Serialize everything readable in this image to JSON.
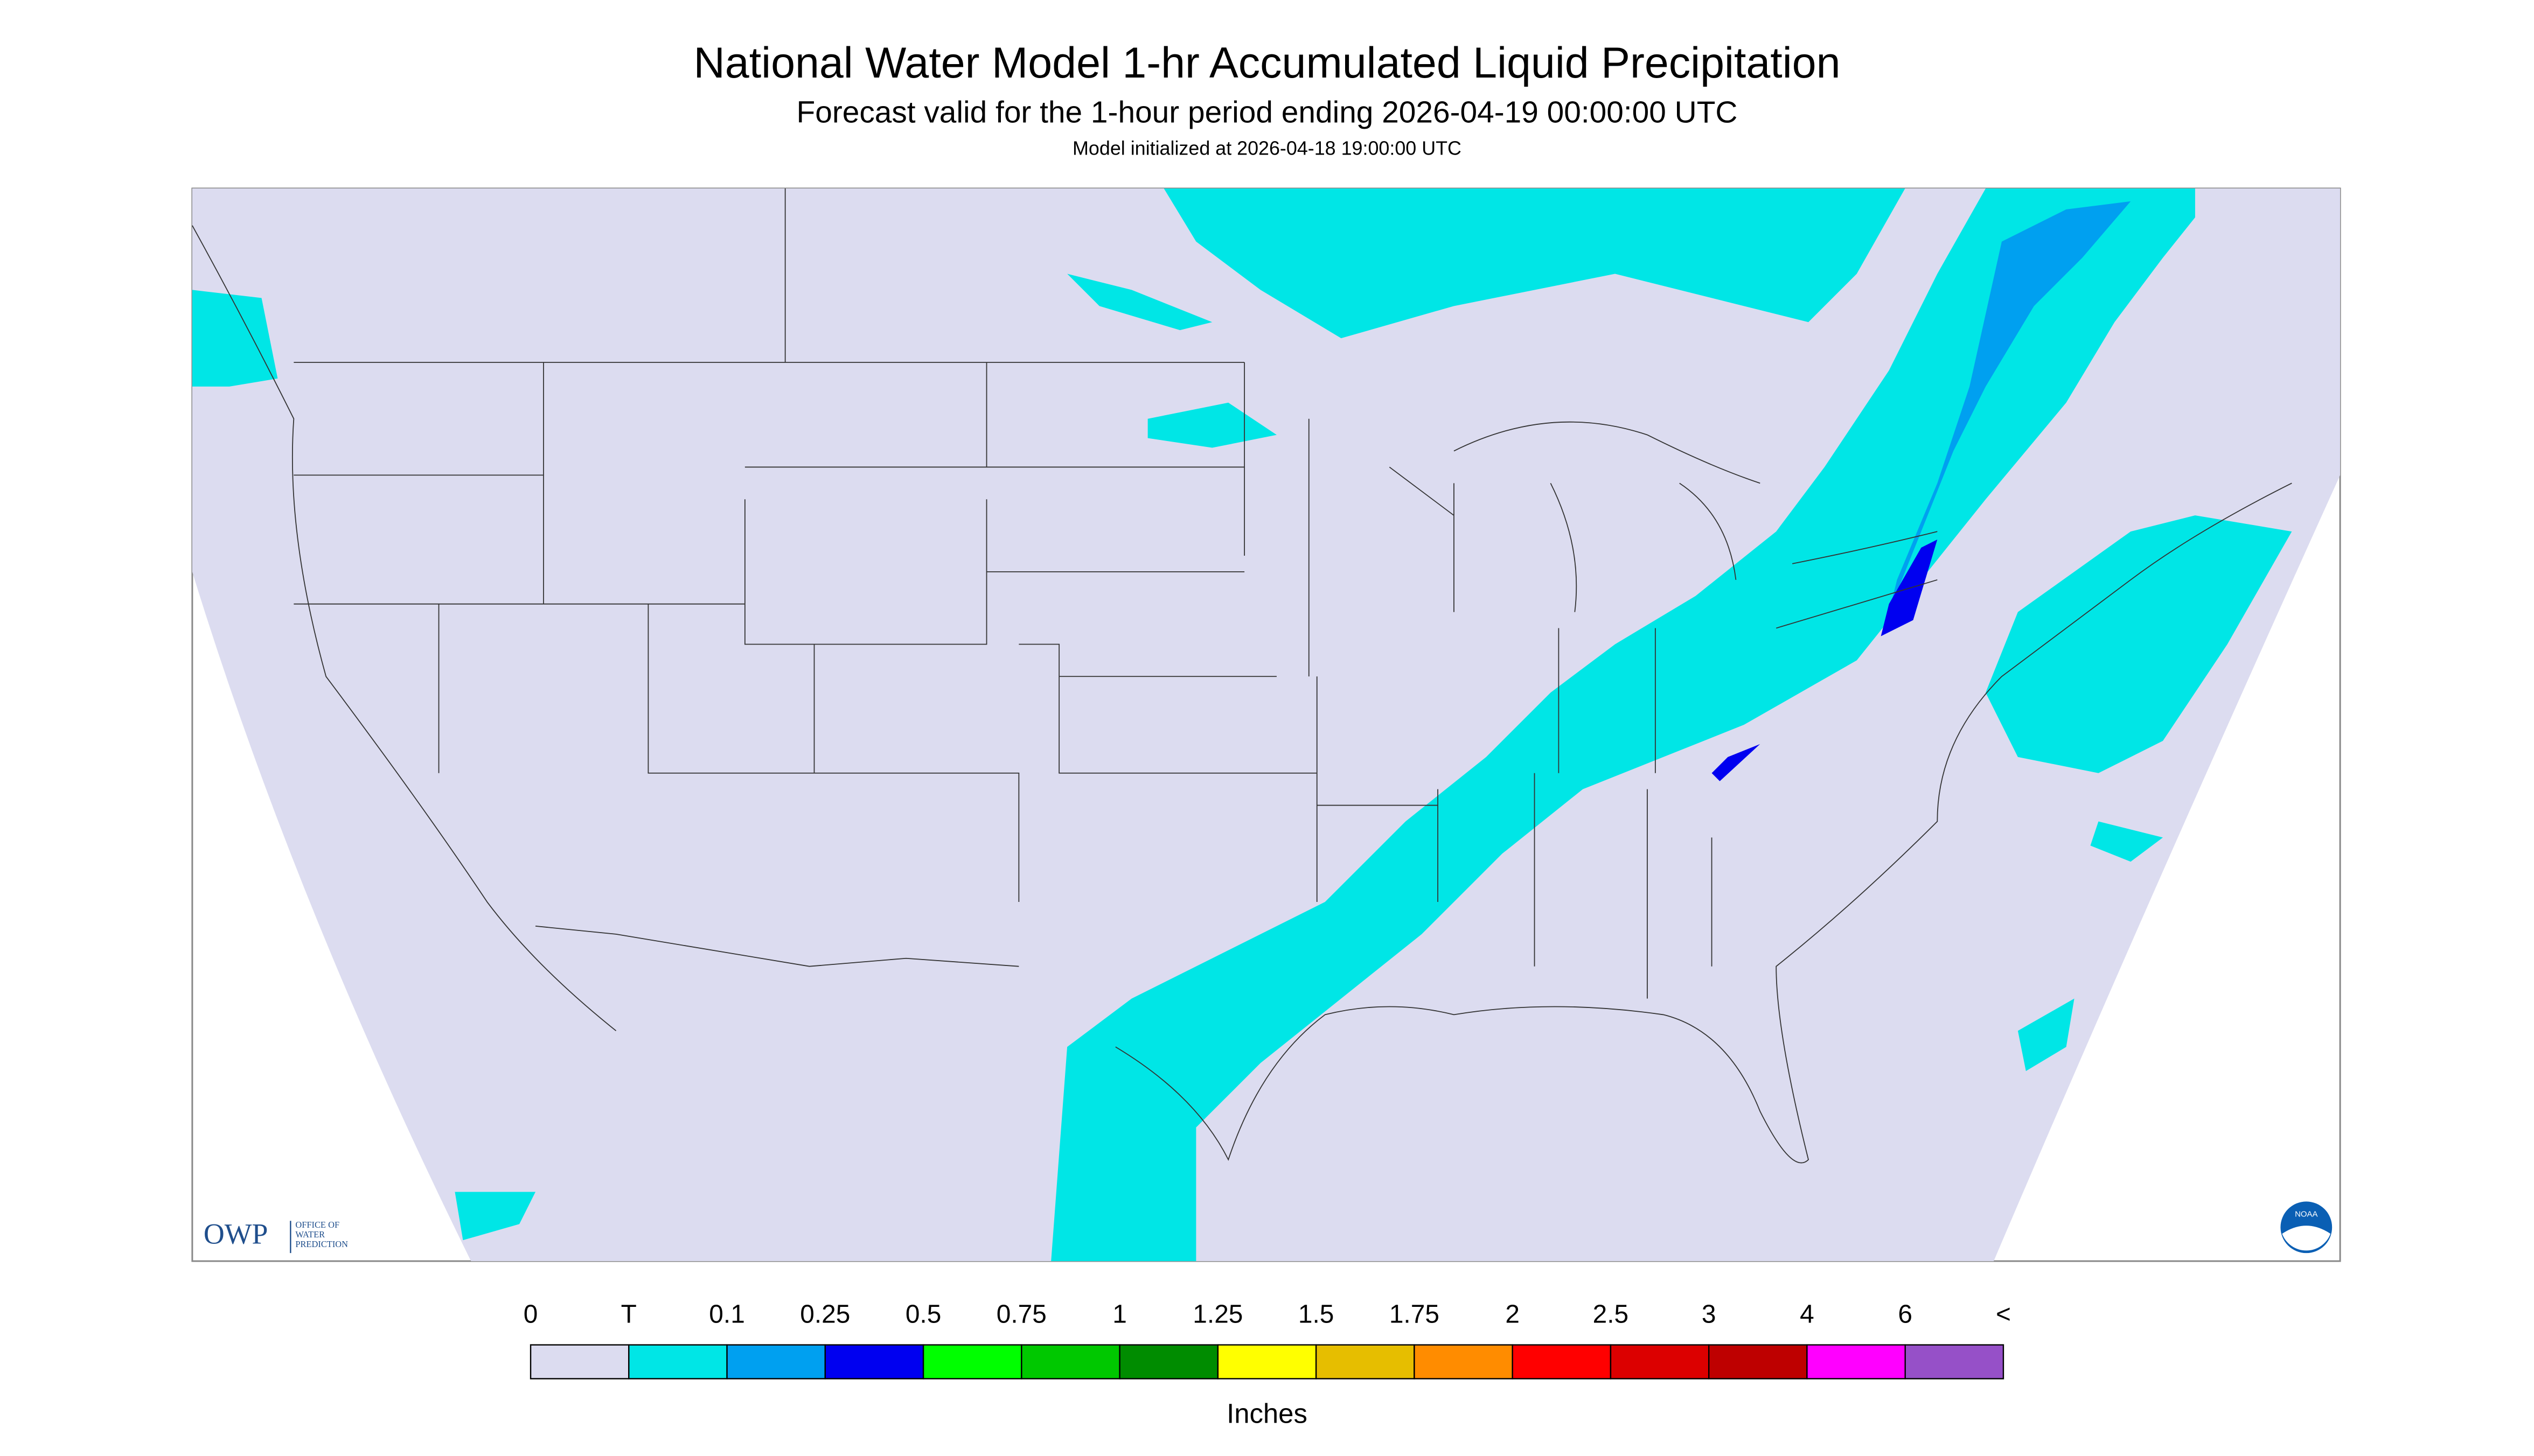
{
  "header": {
    "title": "National Water Model 1-hr Accumulated Liquid Precipitation",
    "subtitle": "Forecast valid for the 1-hour period ending 2026-04-19 00:00:00 UTC",
    "note": "Model initialized at 2026-04-18 19:00:00 UTC"
  },
  "logos": {
    "owp": "OWP",
    "owp_lines": [
      "OFFICE OF",
      "WATER",
      "PREDICTION"
    ],
    "noaa": "NOAA"
  },
  "legend": {
    "labels": [
      "0",
      "T",
      "0.1",
      "0.25",
      "0.5",
      "0.75",
      "1",
      "1.25",
      "1.5",
      "1.75",
      "2",
      "2.5",
      "3",
      "4",
      "6",
      "<"
    ],
    "colors": [
      "#dcdcf0",
      "#00e6e6",
      "#00a0f0",
      "#0000f0",
      "#00ff00",
      "#00c800",
      "#008c00",
      "#ffff00",
      "#e6be00",
      "#ff8c00",
      "#ff0000",
      "#dc0000",
      "#be0000",
      "#ff00ff",
      "#9650c8"
    ],
    "unit": "Inches"
  }
}
